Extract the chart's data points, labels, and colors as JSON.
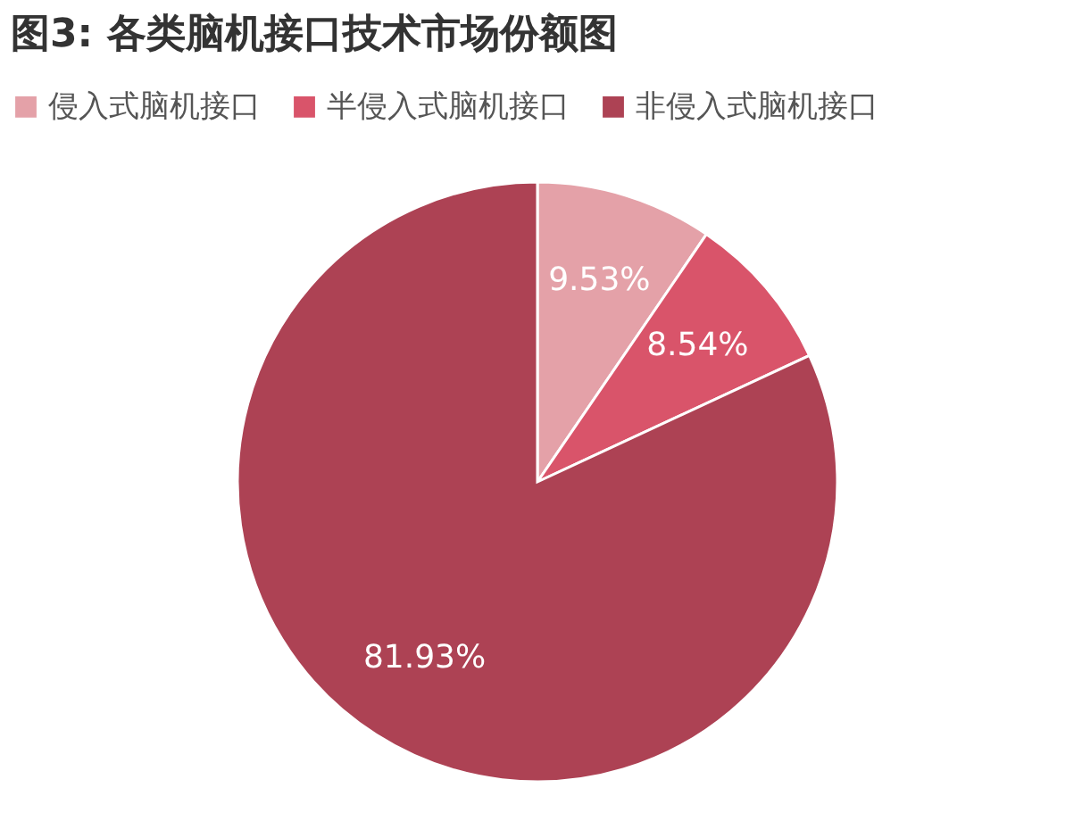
{
  "chart_data": {
    "type": "pie",
    "title": "图3: 各类脑机接口技术市场份额图",
    "categories": [
      "侵入式脑机接口",
      "半侵入式脑机接口",
      "非侵入式脑机接口"
    ],
    "values": [
      9.53,
      8.54,
      81.93
    ],
    "colors": [
      "#e4a1a8",
      "#d9546a",
      "#ad4254"
    ],
    "value_labels": [
      "9.53%",
      "8.54%",
      "81.93%"
    ],
    "legend": "top"
  }
}
